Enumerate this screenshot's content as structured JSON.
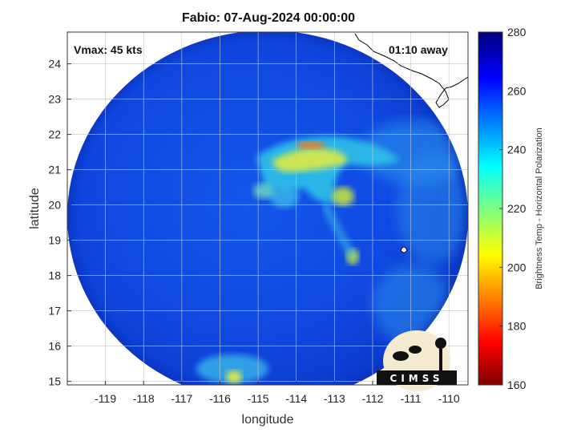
{
  "title": "Fabio: 07-Aug-2024 00:00:00",
  "vmax_label": "Vmax: 45 kts",
  "time_away_label": "01:10 away",
  "xlabel": "longitude",
  "ylabel": "latitude",
  "colorbar_label": "Brightness Temp - Horizontal Polarization",
  "logo_text": "CIMSS",
  "colors": {
    "background_ocean_low": "#0a3fd6",
    "convection_warm": "#ffe800",
    "convection_hot": "#ff6a00",
    "land_outline": "#000000",
    "scan_edge_dark": "#0b2bb8"
  },
  "chart_data": {
    "type": "heatmap",
    "title": "Fabio: 07-Aug-2024 00:00:00",
    "xlabel": "longitude",
    "ylabel": "latitude",
    "xlim": [
      -120,
      -109.5
    ],
    "ylim": [
      14.9,
      24.9
    ],
    "x_ticks": [
      -119,
      -118,
      -117,
      -116,
      -115,
      -114,
      -113,
      -112,
      -111,
      -110
    ],
    "y_ticks": [
      15,
      16,
      17,
      18,
      19,
      20,
      21,
      22,
      23,
      24
    ],
    "grid": true,
    "colorbar": {
      "label": "Brightness Temp - Horizontal Polarization",
      "ticks": [
        160,
        180,
        200,
        220,
        240,
        260,
        280
      ],
      "range": [
        160,
        280
      ],
      "colormap": "jet"
    },
    "storm_name": "Fabio",
    "vmax_kts": 45,
    "time_offset": "01:10 away"
  }
}
